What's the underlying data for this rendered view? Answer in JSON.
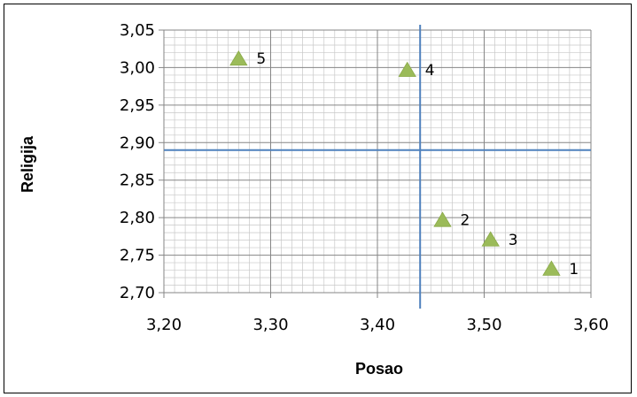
{
  "chart_data": {
    "type": "scatter",
    "title": "",
    "xlabel": "Posao",
    "ylabel": "Religija",
    "xlim": [
      3.2,
      3.6
    ],
    "ylim": [
      2.7,
      3.05
    ],
    "x_ticks": [
      3.2,
      3.3,
      3.4,
      3.5,
      3.6
    ],
    "y_ticks": [
      2.7,
      2.75,
      2.8,
      2.85,
      2.9,
      2.95,
      3.0,
      3.05
    ],
    "x_tick_labels": [
      "3,20",
      "3,30",
      "3,40",
      "3,50",
      "3,60"
    ],
    "y_tick_labels": [
      "2,70",
      "2,75",
      "2,80",
      "2,85",
      "2,90",
      "2,95",
      "3,00",
      "3,05"
    ],
    "grid": true,
    "minor_grid": true,
    "legend": "none",
    "marker": "triangle",
    "marker_color": "#9BBB59",
    "reference_lines": {
      "vertical_x": 3.44,
      "horizontal_y": 2.89,
      "color": "#4F81BD"
    },
    "points": [
      {
        "label": "1",
        "x": 3.563,
        "y": 2.732
      },
      {
        "label": "2",
        "x": 3.461,
        "y": 2.797
      },
      {
        "label": "3",
        "x": 3.506,
        "y": 2.771
      },
      {
        "label": "4",
        "x": 3.428,
        "y": 2.997
      },
      {
        "label": "5",
        "x": 3.27,
        "y": 3.012
      }
    ]
  }
}
